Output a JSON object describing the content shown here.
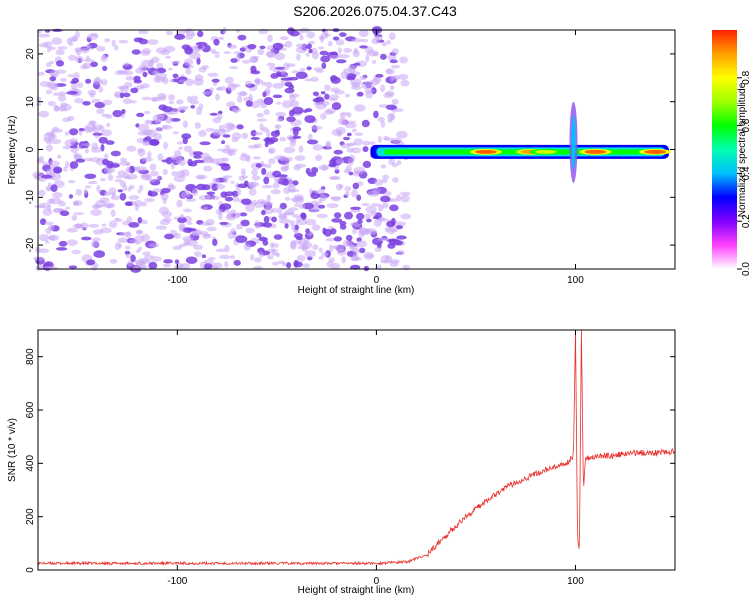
{
  "title": "S206.2026.075.04.37.C43",
  "colors": {
    "noise": "#7a3fe0",
    "snr_line": "#e8302a",
    "axis": "#000000",
    "background": "#ffffff"
  },
  "chart_data": [
    {
      "type": "heatmap",
      "name": "spectrogram",
      "xlabel": "Height of straight line (km)",
      "ylabel": "Frequency (Hz)",
      "xlim": [
        -170,
        150
      ],
      "ylim": [
        -25,
        25
      ],
      "xticks": [
        -100,
        0,
        100
      ],
      "yticks": [
        -20,
        -10,
        0,
        10,
        20
      ],
      "colorbar": {
        "label": "Normalized spectral amplitude",
        "range": [
          0,
          1
        ],
        "ticks": [
          0.0,
          0.2,
          0.4,
          0.6,
          0.8
        ],
        "colormap": [
          "#ffffff",
          "#ff40ff",
          "#8000ff",
          "#0000ff",
          "#00c0ff",
          "#00ffb0",
          "#00ff00",
          "#a0ff00",
          "#ffff00",
          "#ffa000",
          "#ff2000"
        ]
      },
      "features": [
        {
          "kind": "noise",
          "x_range": [
            -170,
            15
          ],
          "f_range": [
            -25,
            25
          ],
          "amplitude": 0.05
        },
        {
          "kind": "carrier",
          "x_range": [
            -3,
            147
          ],
          "frequency": -0.5,
          "peak_x": [
            [
              55,
              0.95
            ],
            [
              78,
              0.9
            ],
            [
              85,
              0.75
            ],
            [
              110,
              0.95
            ],
            [
              140,
              0.95
            ]
          ]
        },
        {
          "kind": "burst",
          "x": 99,
          "f_range": [
            -7,
            10
          ],
          "amplitude": 0.4
        }
      ]
    },
    {
      "type": "line",
      "name": "snr",
      "xlabel": "Height of straight line (km)",
      "ylabel": "SNR (10 * v/v)",
      "xlim": [
        -170,
        150
      ],
      "ylim": [
        0,
        900
      ],
      "xticks": [
        -100,
        0,
        100
      ],
      "yticks": [
        0,
        200,
        400,
        600,
        800
      ],
      "series": [
        {
          "name": "SNR",
          "x": [
            -170,
            -120,
            -60,
            0,
            15,
            25,
            35,
            45,
            55,
            65,
            75,
            85,
            95,
            99,
            100,
            101,
            102,
            103,
            104,
            105,
            110,
            120,
            130,
            140,
            150
          ],
          "y": [
            25,
            25,
            25,
            25,
            30,
            55,
            130,
            200,
            260,
            310,
            345,
            375,
            395,
            430,
            900,
            120,
            70,
            900,
            300,
            420,
            425,
            430,
            440,
            440,
            445
          ]
        }
      ]
    }
  ]
}
